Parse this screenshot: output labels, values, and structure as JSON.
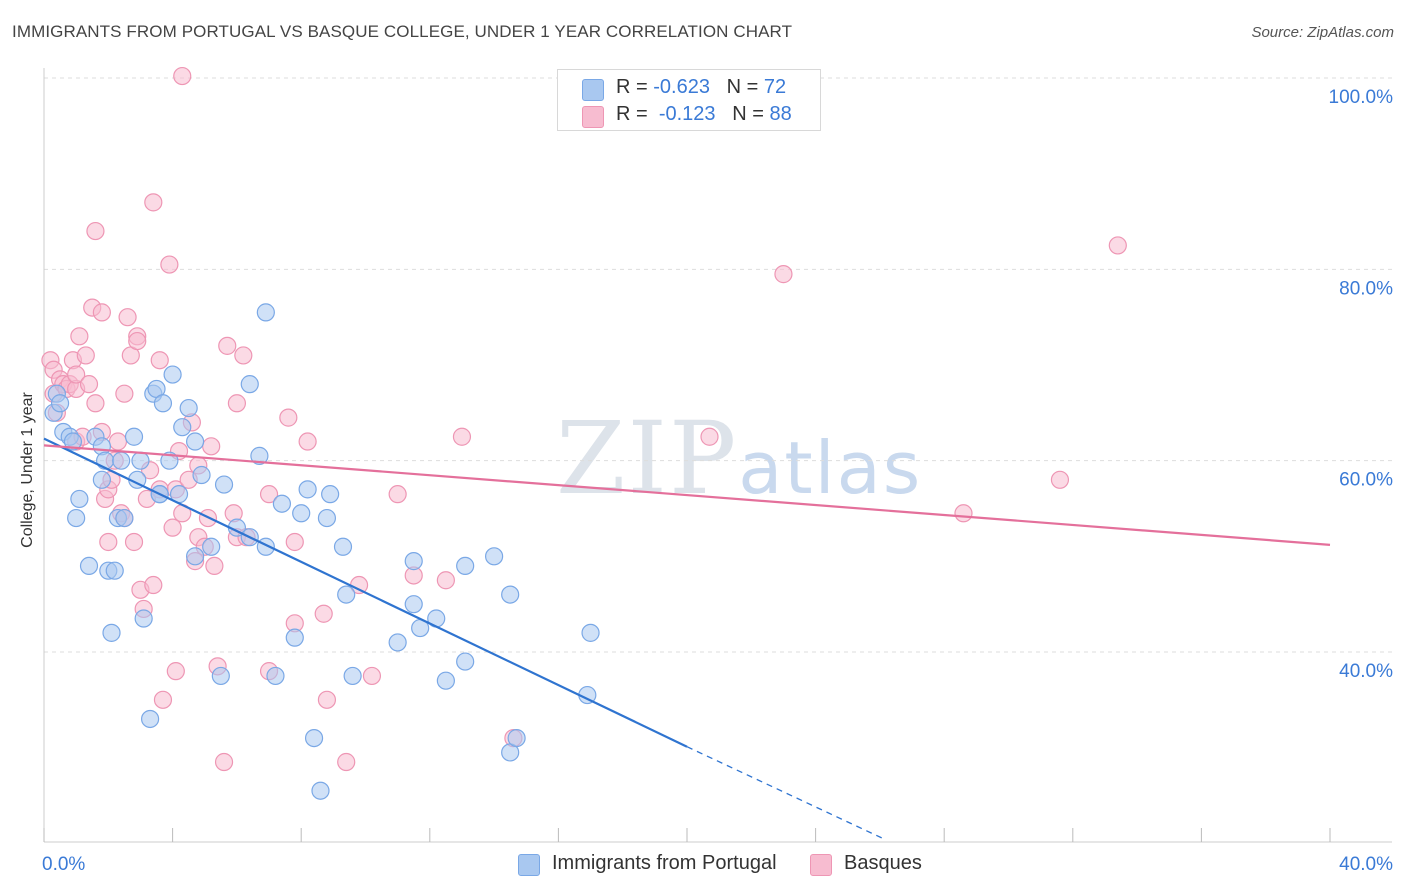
{
  "title": "IMMIGRANTS FROM PORTUGAL VS BASQUE COLLEGE, UNDER 1 YEAR CORRELATION CHART",
  "source": "Source: ZipAtlas.com",
  "watermark": {
    "zip": "ZIP",
    "atlas": "atlas"
  },
  "legend": {
    "rows": [
      {
        "r_label": "R =",
        "r_value": "-0.623",
        "n_label": "N =",
        "n_value": "72",
        "color": "#a9c8f0"
      },
      {
        "r_label": "R =",
        "r_value": "-0.123",
        "n_label": "N =",
        "n_value": "88",
        "color": "#f7bcd0"
      }
    ]
  },
  "colors": {
    "blue_fill": "#a9c8f0",
    "blue_stroke": "#7aa8e6",
    "blue_line": "#2f74d0",
    "pink_fill": "#f7bcd0",
    "pink_stroke": "#ee96b4",
    "pink_line": "#e4709b",
    "tick_label": "#3a7ad6",
    "grid": "#dddddd"
  },
  "chart_data": {
    "type": "scatter",
    "title": "IMMIGRANTS FROM PORTUGAL VS BASQUE COLLEGE, UNDER 1 YEAR CORRELATION CHART",
    "xlabel": "",
    "ylabel": "College, Under 1 year",
    "xlim": [
      0,
      40
    ],
    "ylim": [
      20,
      102
    ],
    "x_tick_labels": [
      "0.0%",
      "40.0%"
    ],
    "y_ticks": [
      40,
      60,
      80,
      100
    ],
    "y_tick_labels": [
      "40.0%",
      "60.0%",
      "80.0%",
      "100.0%"
    ],
    "grid": true,
    "legend_placement": "top-center",
    "series": [
      {
        "name": "Immigrants from Portugal",
        "color": "#a9c8f0",
        "trend": {
          "x": [
            0,
            20
          ],
          "y": [
            62.3,
            30.1
          ],
          "dashed_to": [
            26.1,
            20.5
          ]
        },
        "points": [
          [
            0.3,
            65
          ],
          [
            0.4,
            67
          ],
          [
            0.5,
            66
          ],
          [
            0.6,
            63
          ],
          [
            0.8,
            62.5
          ],
          [
            0.9,
            62
          ],
          [
            1.0,
            54
          ],
          [
            1.1,
            56
          ],
          [
            1.4,
            49
          ],
          [
            1.6,
            62.5
          ],
          [
            1.8,
            61.5
          ],
          [
            1.8,
            58
          ],
          [
            1.9,
            60
          ],
          [
            2.0,
            48.5
          ],
          [
            2.1,
            42
          ],
          [
            2.2,
            48.5
          ],
          [
            2.3,
            54
          ],
          [
            2.4,
            60
          ],
          [
            2.5,
            54
          ],
          [
            2.8,
            62.5
          ],
          [
            2.9,
            58
          ],
          [
            3.0,
            60
          ],
          [
            3.1,
            43.5
          ],
          [
            3.3,
            33
          ],
          [
            3.4,
            67
          ],
          [
            3.5,
            67.5
          ],
          [
            3.6,
            56.5
          ],
          [
            3.7,
            66
          ],
          [
            3.9,
            60
          ],
          [
            4.0,
            69
          ],
          [
            4.2,
            56.5
          ],
          [
            4.3,
            63.5
          ],
          [
            4.5,
            65.5
          ],
          [
            4.7,
            62
          ],
          [
            4.7,
            50
          ],
          [
            4.9,
            58.5
          ],
          [
            5.2,
            51
          ],
          [
            5.5,
            37.5
          ],
          [
            5.6,
            57.5
          ],
          [
            6.0,
            53
          ],
          [
            6.4,
            52
          ],
          [
            6.4,
            68
          ],
          [
            6.7,
            60.5
          ],
          [
            6.9,
            75.5
          ],
          [
            6.9,
            51
          ],
          [
            7.2,
            37.5
          ],
          [
            7.4,
            55.5
          ],
          [
            7.8,
            41.5
          ],
          [
            8.0,
            54.5
          ],
          [
            8.2,
            57
          ],
          [
            8.4,
            31
          ],
          [
            8.6,
            25.5
          ],
          [
            8.8,
            54
          ],
          [
            8.9,
            56.5
          ],
          [
            9.3,
            51
          ],
          [
            9.4,
            46
          ],
          [
            9.6,
            37.5
          ],
          [
            11.0,
            41
          ],
          [
            11.5,
            49.5
          ],
          [
            11.5,
            45
          ],
          [
            11.7,
            42.5
          ],
          [
            12.2,
            43.5
          ],
          [
            12.5,
            37
          ],
          [
            13.1,
            39
          ],
          [
            13.1,
            49
          ],
          [
            14.0,
            50
          ],
          [
            14.5,
            46
          ],
          [
            14.5,
            29.5
          ],
          [
            14.7,
            31
          ],
          [
            17.0,
            42
          ],
          [
            16.9,
            35.5
          ],
          [
            3.6,
            56.5
          ]
        ]
      },
      {
        "name": "Basques",
        "color": "#f7bcd0",
        "trend": {
          "x": [
            0,
            40
          ],
          "y": [
            61.6,
            51.2
          ]
        },
        "points": [
          [
            0.2,
            70.5
          ],
          [
            0.3,
            69.5
          ],
          [
            0.3,
            67
          ],
          [
            0.4,
            65
          ],
          [
            0.5,
            68.5
          ],
          [
            0.6,
            68
          ],
          [
            0.7,
            67.5
          ],
          [
            0.8,
            68
          ],
          [
            0.9,
            70.5
          ],
          [
            1.0,
            62
          ],
          [
            1.0,
            67.5
          ],
          [
            1.0,
            69
          ],
          [
            1.1,
            73
          ],
          [
            1.2,
            62.5
          ],
          [
            1.3,
            71
          ],
          [
            1.4,
            68
          ],
          [
            1.5,
            76
          ],
          [
            1.6,
            84
          ],
          [
            1.6,
            66
          ],
          [
            1.8,
            75.5
          ],
          [
            1.8,
            63
          ],
          [
            1.9,
            56
          ],
          [
            2.0,
            51.5
          ],
          [
            2.0,
            57
          ],
          [
            2.1,
            58
          ],
          [
            2.2,
            60
          ],
          [
            2.3,
            62
          ],
          [
            2.4,
            54.5
          ],
          [
            2.5,
            67
          ],
          [
            2.5,
            54
          ],
          [
            2.6,
            75
          ],
          [
            2.7,
            71
          ],
          [
            2.8,
            51.5
          ],
          [
            2.9,
            73
          ],
          [
            2.9,
            72.5
          ],
          [
            3.0,
            46.5
          ],
          [
            3.1,
            44.5
          ],
          [
            3.2,
            56
          ],
          [
            3.3,
            59
          ],
          [
            3.4,
            47
          ],
          [
            3.4,
            87
          ],
          [
            3.6,
            70.5
          ],
          [
            3.6,
            57
          ],
          [
            3.7,
            35
          ],
          [
            3.9,
            80.5
          ],
          [
            4.0,
            53
          ],
          [
            4.1,
            57
          ],
          [
            4.1,
            38
          ],
          [
            4.2,
            61
          ],
          [
            4.3,
            54.5
          ],
          [
            4.5,
            58
          ],
          [
            4.6,
            64
          ],
          [
            4.7,
            49.5
          ],
          [
            4.8,
            52
          ],
          [
            4.8,
            59.5
          ],
          [
            5.0,
            51
          ],
          [
            5.1,
            54
          ],
          [
            5.2,
            61.5
          ],
          [
            5.3,
            49
          ],
          [
            5.4,
            38.5
          ],
          [
            5.6,
            28.5
          ],
          [
            5.7,
            72
          ],
          [
            5.9,
            54.5
          ],
          [
            6.0,
            52
          ],
          [
            6.0,
            66
          ],
          [
            6.2,
            71
          ],
          [
            6.3,
            52
          ],
          [
            7.0,
            56.5
          ],
          [
            7.0,
            38
          ],
          [
            7.6,
            64.5
          ],
          [
            7.8,
            43
          ],
          [
            7.8,
            51.5
          ],
          [
            8.2,
            62
          ],
          [
            8.7,
            44
          ],
          [
            8.8,
            35
          ],
          [
            9.4,
            28.5
          ],
          [
            9.8,
            47
          ],
          [
            10.2,
            37.5
          ],
          [
            11.0,
            56.5
          ],
          [
            11.5,
            48
          ],
          [
            12.5,
            47.5
          ],
          [
            13.0,
            62.5
          ],
          [
            14.6,
            31
          ],
          [
            20.7,
            62.5
          ],
          [
            23.0,
            79.5
          ],
          [
            28.6,
            54.5
          ],
          [
            31.6,
            58
          ],
          [
            33.4,
            82.5
          ]
        ]
      }
    ],
    "outlier_note": null
  },
  "bottom_legend": [
    {
      "label": "Immigrants from Portugal",
      "color": "#a9c8f0"
    },
    {
      "label": "Basques",
      "color": "#f7bcd0"
    }
  ]
}
